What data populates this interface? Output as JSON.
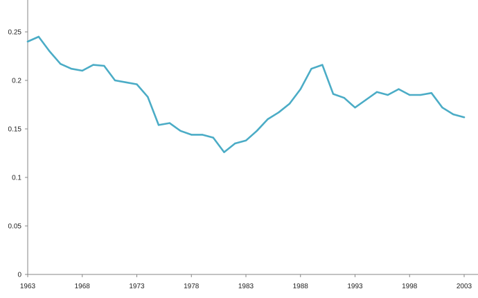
{
  "chart_data": {
    "type": "line",
    "title": "",
    "xlabel": "",
    "ylabel": "",
    "xlim": [
      1963,
      2003
    ],
    "ylim": [
      0,
      0.25
    ],
    "grid": false,
    "legend": "none",
    "x_ticks": [
      "1963",
      "1968",
      "1973",
      "1978",
      "1983",
      "1988",
      "1993",
      "1998",
      "2003"
    ],
    "y_ticks": [
      "0",
      "0.05",
      "0.1",
      "0.15",
      "0.2",
      "0.25"
    ],
    "line_color": "#4bacc6",
    "axis_color": "#868686",
    "series": [
      {
        "x": [
          1963,
          1964,
          1965,
          1966,
          1967,
          1968,
          1969,
          1970,
          1971,
          1972,
          1973,
          1974,
          1975,
          1976,
          1977,
          1978,
          1979,
          1980,
          1981,
          1982,
          1983,
          1984,
          1985,
          1986,
          1987,
          1988,
          1989,
          1990,
          1991,
          1992,
          1993,
          1994,
          1995,
          1996,
          1997,
          1998,
          1999,
          2000,
          2001,
          2002,
          2003
        ],
        "values": [
          0.24,
          0.245,
          0.23,
          0.217,
          0.212,
          0.21,
          0.216,
          0.215,
          0.2,
          0.198,
          0.196,
          0.183,
          0.154,
          0.156,
          0.148,
          0.144,
          0.144,
          0.141,
          0.126,
          0.135,
          0.138,
          0.148,
          0.16,
          0.167,
          0.176,
          0.191,
          0.212,
          0.216,
          0.186,
          0.182,
          0.172,
          0.18,
          0.188,
          0.185,
          0.191,
          0.185,
          0.185,
          0.187,
          0.172,
          0.165,
          0.162
        ]
      }
    ]
  }
}
